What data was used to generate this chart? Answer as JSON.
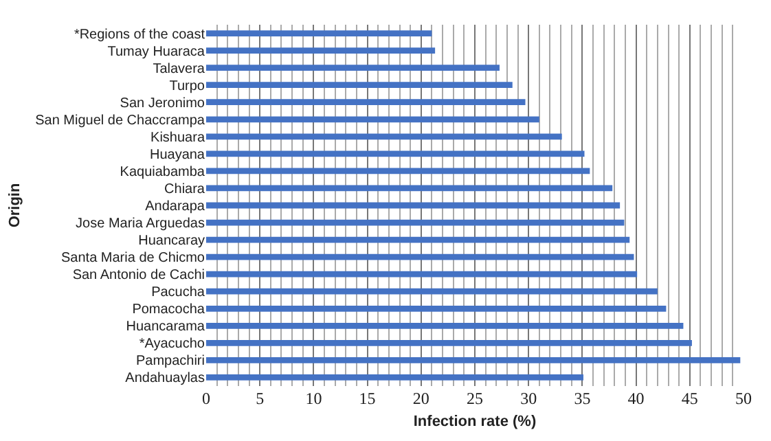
{
  "chart_data": {
    "type": "bar",
    "orientation": "horizontal",
    "xlabel": "Infection rate (%)",
    "ylabel": "Origin",
    "categories": [
      "*Regions of the coast",
      "Tumay Huaraca",
      "Talavera",
      "Turpo",
      "San Jeronimo",
      "San Miguel de Chaccrampa",
      "Kishuara",
      "Huayana",
      "Kaquiabamba",
      "Chiara",
      "Andarapa",
      "Jose Maria Arguedas",
      "Huancaray",
      "Santa Maria de Chicmo",
      "San Antonio de Cachi",
      "Pacucha",
      "Pomacocha",
      "Huancarama",
      "*Ayacucho",
      "Pampachiri",
      "Andahuaylas"
    ],
    "values": [
      21.0,
      21.3,
      27.3,
      28.5,
      29.7,
      31.0,
      33.1,
      35.2,
      35.7,
      37.8,
      38.5,
      38.9,
      39.4,
      39.8,
      40.1,
      42.0,
      42.8,
      44.4,
      45.2,
      49.7,
      35.1
    ],
    "color": "#4472c4",
    "xlim": [
      0,
      50
    ],
    "xticks": [
      0,
      5,
      10,
      15,
      20,
      25,
      30,
      35,
      40,
      45,
      50
    ],
    "grid": "x"
  }
}
